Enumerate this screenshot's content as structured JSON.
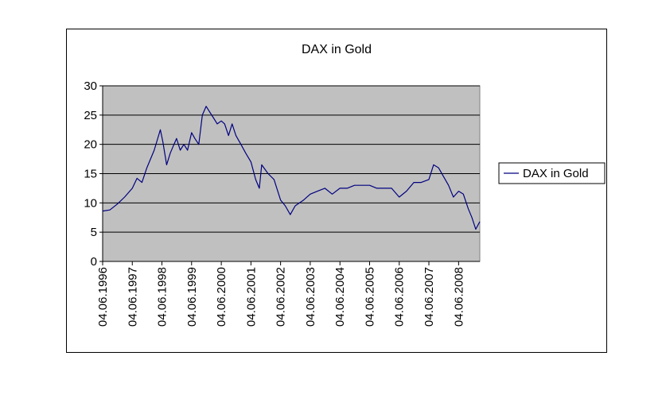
{
  "chart_data": {
    "type": "line",
    "title": "DAX in Gold",
    "xlabel": "",
    "ylabel": "",
    "ylim": [
      0,
      30
    ],
    "yticks": [
      0,
      5,
      10,
      15,
      20,
      25,
      30
    ],
    "xlim": [
      "1996-06-04",
      "2009-02-20"
    ],
    "xtick_values": [
      "1996-06-04",
      "1997-06-04",
      "1998-06-04",
      "1999-06-04",
      "2000-06-04",
      "2001-06-04",
      "2002-06-04",
      "2003-06-04",
      "2004-06-04",
      "2005-06-04",
      "2006-06-04",
      "2007-06-04",
      "2008-06-04"
    ],
    "xtick_labels": [
      "04.06.1996",
      "04.06.1997",
      "04.06.1998",
      "04.06.1999",
      "04.06.2000",
      "04.06.2001",
      "04.06.2002",
      "04.06.2003",
      "04.06.2004",
      "04.06.2005",
      "04.06.2006",
      "04.06.2007",
      "04.06.2008"
    ],
    "grid": "horizontal",
    "plot_background": "#c0c0c0",
    "legend_placement": "right",
    "series": [
      {
        "name": "DAX in Gold",
        "color": "#000080",
        "x": [
          "1996-06-04",
          "1996-09-01",
          "1996-12-01",
          "1997-03-01",
          "1997-06-04",
          "1997-08-01",
          "1997-10-01",
          "1997-12-01",
          "1998-03-01",
          "1998-05-15",
          "1998-06-15",
          "1998-08-01",
          "1998-09-15",
          "1998-10-15",
          "1998-12-01",
          "1999-01-15",
          "1999-03-01",
          "1999-04-15",
          "1999-06-04",
          "1999-07-15",
          "1999-09-01",
          "1999-10-15",
          "1999-12-01",
          "2000-01-15",
          "2000-03-01",
          "2000-04-15",
          "2000-06-04",
          "2000-07-15",
          "2000-09-01",
          "2000-10-15",
          "2000-12-01",
          "2001-02-01",
          "2001-04-01",
          "2001-06-04",
          "2001-08-01",
          "2001-09-15",
          "2001-10-15",
          "2002-01-01",
          "2002-03-15",
          "2002-06-04",
          "2002-08-01",
          "2002-10-01",
          "2002-12-01",
          "2003-03-15",
          "2003-06-04",
          "2003-09-01",
          "2003-12-01",
          "2004-03-01",
          "2004-06-04",
          "2004-09-01",
          "2004-12-01",
          "2005-03-01",
          "2005-06-04",
          "2005-09-01",
          "2005-12-01",
          "2006-03-01",
          "2006-06-04",
          "2006-09-01",
          "2006-12-01",
          "2007-03-01",
          "2007-06-04",
          "2007-08-01",
          "2007-10-01",
          "2007-12-01",
          "2008-02-01",
          "2008-04-01",
          "2008-06-04",
          "2008-08-01",
          "2008-10-01",
          "2008-11-15",
          "2009-01-01",
          "2009-02-20"
        ],
        "y": [
          8.6,
          8.8,
          9.8,
          11.0,
          12.5,
          14.2,
          13.5,
          16.0,
          19.0,
          22.5,
          20.5,
          16.5,
          18.5,
          19.5,
          21.0,
          19.0,
          20.0,
          19.0,
          22.0,
          21.0,
          20.0,
          25.0,
          26.5,
          25.5,
          24.5,
          23.5,
          24.0,
          23.5,
          21.5,
          23.5,
          21.5,
          20.0,
          18.5,
          17.0,
          14.0,
          12.5,
          16.5,
          15.0,
          14.0,
          10.5,
          9.5,
          8.0,
          9.5,
          10.5,
          11.5,
          12.0,
          12.5,
          11.5,
          12.5,
          12.5,
          13.0,
          13.0,
          13.0,
          12.5,
          12.5,
          12.5,
          11.0,
          12.0,
          13.5,
          13.5,
          14.0,
          16.5,
          16.0,
          14.5,
          13.0,
          11.0,
          12.0,
          11.5,
          9.0,
          7.5,
          5.5,
          6.8
        ]
      }
    ]
  }
}
